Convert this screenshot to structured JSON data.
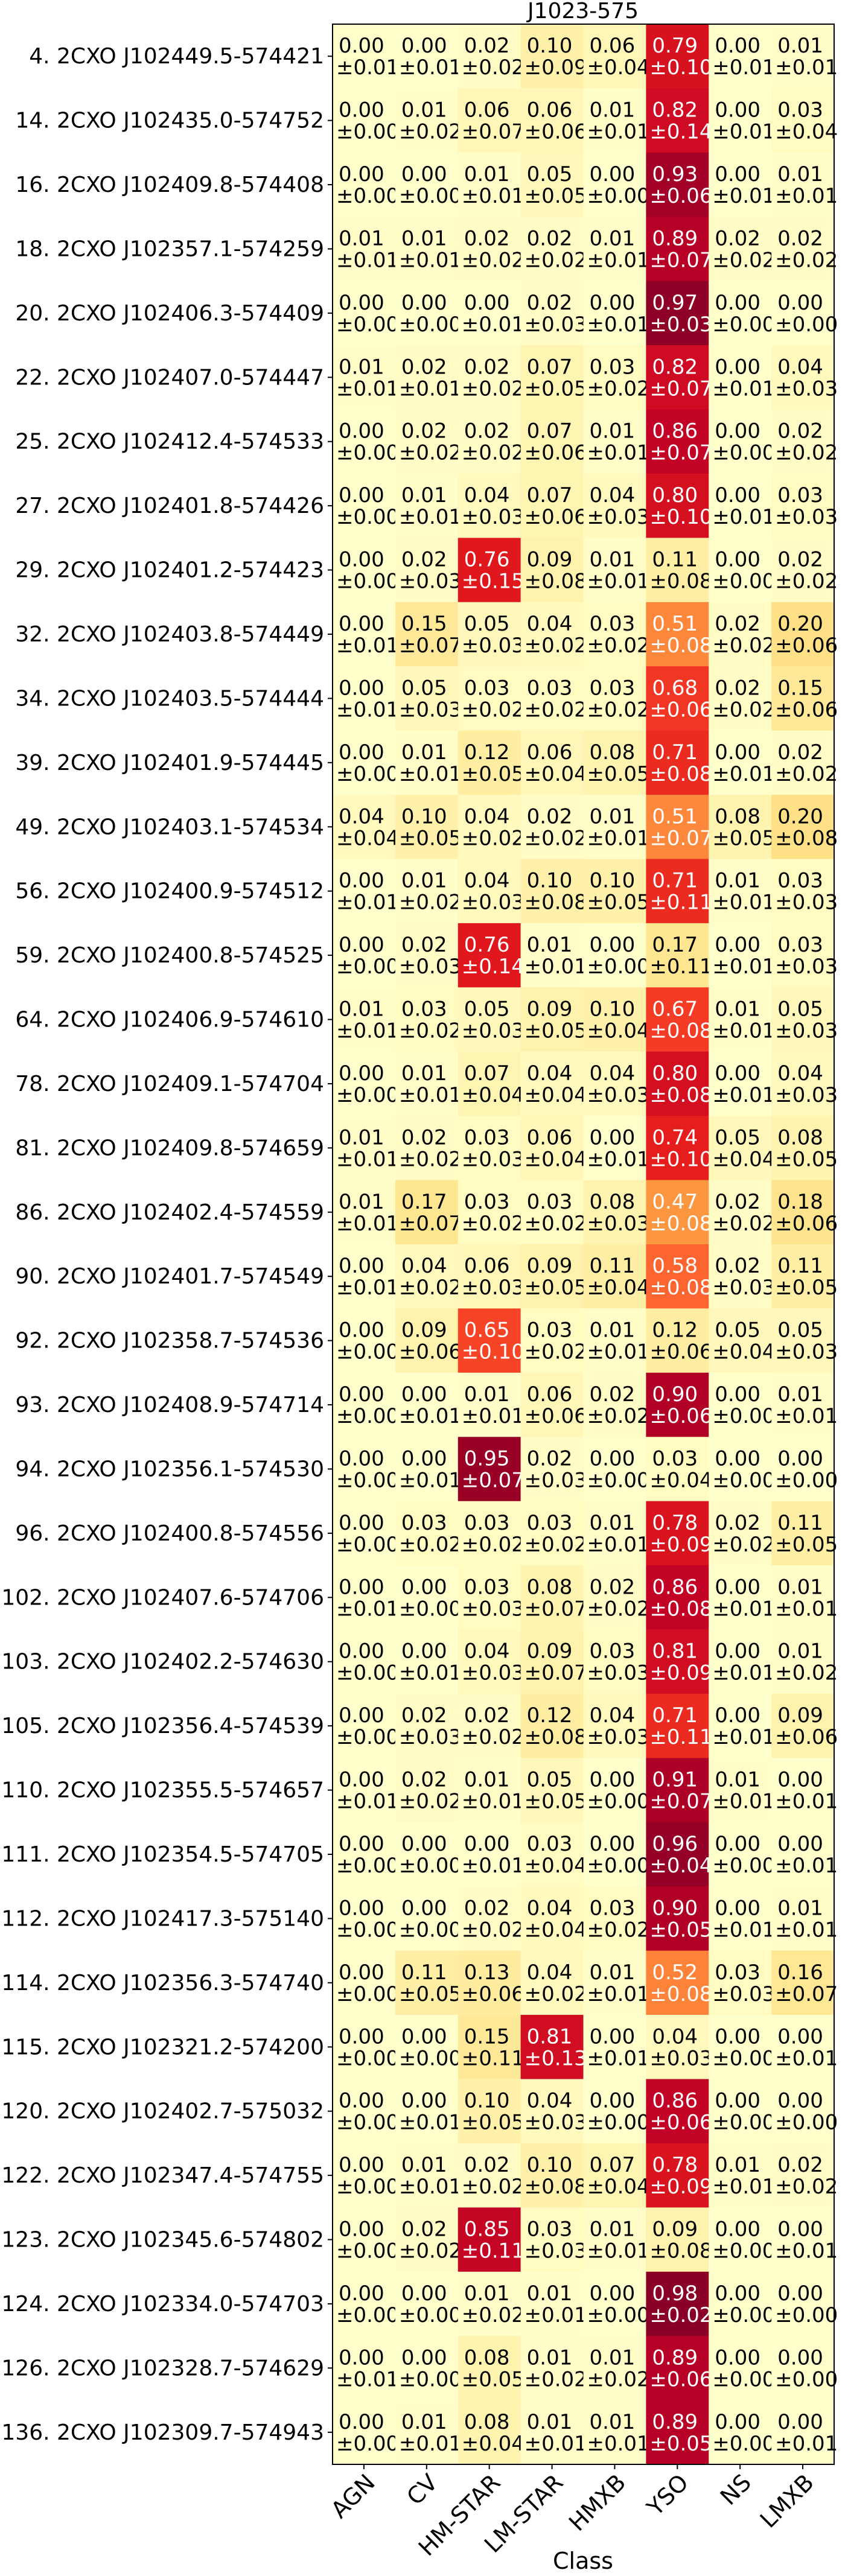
{
  "chart_data": {
    "type": "heatmap",
    "title": "J1023-575",
    "xlabel": "Class",
    "ylabel": "",
    "classes": [
      "AGN",
      "CV",
      "HM-STAR",
      "LM-STAR",
      "HMXB",
      "YSO",
      "NS",
      "LMXB"
    ],
    "colormap": "YlOrRd",
    "value_range": [
      0,
      1
    ],
    "cell_text_format": "{value}\n±{error}",
    "rows": [
      {
        "label": "4. 2CXO J102449.5-574421",
        "values": [
          "0.00",
          "0.00",
          "0.02",
          "0.10",
          "0.06",
          "0.79",
          "0.00",
          "0.01"
        ],
        "errors": [
          "0.01",
          "0.01",
          "0.02",
          "0.09",
          "0.04",
          "0.10",
          "0.01",
          "0.01"
        ]
      },
      {
        "label": "14. 2CXO J102435.0-574752",
        "values": [
          "0.00",
          "0.01",
          "0.06",
          "0.06",
          "0.01",
          "0.82",
          "0.00",
          "0.03"
        ],
        "errors": [
          "0.00",
          "0.02",
          "0.07",
          "0.06",
          "0.01",
          "0.14",
          "0.01",
          "0.04"
        ]
      },
      {
        "label": "16. 2CXO J102409.8-574408",
        "values": [
          "0.00",
          "0.00",
          "0.01",
          "0.05",
          "0.00",
          "0.93",
          "0.00",
          "0.01"
        ],
        "errors": [
          "0.00",
          "0.00",
          "0.01",
          "0.05",
          "0.00",
          "0.06",
          "0.01",
          "0.01"
        ]
      },
      {
        "label": "18. 2CXO J102357.1-574259",
        "values": [
          "0.01",
          "0.01",
          "0.02",
          "0.02",
          "0.01",
          "0.89",
          "0.02",
          "0.02"
        ],
        "errors": [
          "0.01",
          "0.01",
          "0.02",
          "0.02",
          "0.01",
          "0.07",
          "0.02",
          "0.02"
        ]
      },
      {
        "label": "20. 2CXO J102406.3-574409",
        "values": [
          "0.00",
          "0.00",
          "0.00",
          "0.02",
          "0.00",
          "0.97",
          "0.00",
          "0.00"
        ],
        "errors": [
          "0.00",
          "0.00",
          "0.01",
          "0.03",
          "0.01",
          "0.03",
          "0.00",
          "0.00"
        ]
      },
      {
        "label": "22. 2CXO J102407.0-574447",
        "values": [
          "0.01",
          "0.02",
          "0.02",
          "0.07",
          "0.03",
          "0.82",
          "0.00",
          "0.04"
        ],
        "errors": [
          "0.01",
          "0.01",
          "0.02",
          "0.05",
          "0.02",
          "0.07",
          "0.01",
          "0.03"
        ]
      },
      {
        "label": "25. 2CXO J102412.4-574533",
        "values": [
          "0.00",
          "0.02",
          "0.02",
          "0.07",
          "0.01",
          "0.86",
          "0.00",
          "0.02"
        ],
        "errors": [
          "0.00",
          "0.02",
          "0.02",
          "0.06",
          "0.01",
          "0.07",
          "0.00",
          "0.02"
        ]
      },
      {
        "label": "27. 2CXO J102401.8-574426",
        "values": [
          "0.00",
          "0.01",
          "0.04",
          "0.07",
          "0.04",
          "0.80",
          "0.00",
          "0.03"
        ],
        "errors": [
          "0.00",
          "0.01",
          "0.03",
          "0.06",
          "0.03",
          "0.10",
          "0.01",
          "0.03"
        ]
      },
      {
        "label": "29. 2CXO J102401.2-574423",
        "values": [
          "0.00",
          "0.02",
          "0.76",
          "0.09",
          "0.01",
          "0.11",
          "0.00",
          "0.02"
        ],
        "errors": [
          "0.00",
          "0.03",
          "0.15",
          "0.08",
          "0.01",
          "0.08",
          "0.00",
          "0.02"
        ]
      },
      {
        "label": "32. 2CXO J102403.8-574449",
        "values": [
          "0.00",
          "0.15",
          "0.05",
          "0.04",
          "0.03",
          "0.51",
          "0.02",
          "0.20"
        ],
        "errors": [
          "0.01",
          "0.07",
          "0.03",
          "0.02",
          "0.02",
          "0.08",
          "0.02",
          "0.06"
        ]
      },
      {
        "label": "34. 2CXO J102403.5-574444",
        "values": [
          "0.00",
          "0.05",
          "0.03",
          "0.03",
          "0.03",
          "0.68",
          "0.02",
          "0.15"
        ],
        "errors": [
          "0.01",
          "0.03",
          "0.02",
          "0.02",
          "0.02",
          "0.06",
          "0.02",
          "0.06"
        ]
      },
      {
        "label": "39. 2CXO J102401.9-574445",
        "values": [
          "0.00",
          "0.01",
          "0.12",
          "0.06",
          "0.08",
          "0.71",
          "0.00",
          "0.02"
        ],
        "errors": [
          "0.00",
          "0.01",
          "0.05",
          "0.04",
          "0.05",
          "0.08",
          "0.01",
          "0.02"
        ]
      },
      {
        "label": "49. 2CXO J102403.1-574534",
        "values": [
          "0.04",
          "0.10",
          "0.04",
          "0.02",
          "0.01",
          "0.51",
          "0.08",
          "0.20"
        ],
        "errors": [
          "0.04",
          "0.05",
          "0.02",
          "0.02",
          "0.01",
          "0.07",
          "0.05",
          "0.08"
        ]
      },
      {
        "label": "56. 2CXO J102400.9-574512",
        "values": [
          "0.00",
          "0.01",
          "0.04",
          "0.10",
          "0.10",
          "0.71",
          "0.01",
          "0.03"
        ],
        "errors": [
          "0.01",
          "0.02",
          "0.03",
          "0.08",
          "0.05",
          "0.11",
          "0.01",
          "0.03"
        ]
      },
      {
        "label": "59. 2CXO J102400.8-574525",
        "values": [
          "0.00",
          "0.02",
          "0.76",
          "0.01",
          "0.00",
          "0.17",
          "0.00",
          "0.03"
        ],
        "errors": [
          "0.00",
          "0.03",
          "0.14",
          "0.01",
          "0.00",
          "0.11",
          "0.01",
          "0.03"
        ]
      },
      {
        "label": "64. 2CXO J102406.9-574610",
        "values": [
          "0.01",
          "0.03",
          "0.05",
          "0.09",
          "0.10",
          "0.67",
          "0.01",
          "0.05"
        ],
        "errors": [
          "0.01",
          "0.02",
          "0.03",
          "0.05",
          "0.04",
          "0.08",
          "0.01",
          "0.03"
        ]
      },
      {
        "label": "78. 2CXO J102409.1-574704",
        "values": [
          "0.00",
          "0.01",
          "0.07",
          "0.04",
          "0.04",
          "0.80",
          "0.00",
          "0.04"
        ],
        "errors": [
          "0.00",
          "0.01",
          "0.04",
          "0.04",
          "0.03",
          "0.08",
          "0.01",
          "0.03"
        ]
      },
      {
        "label": "81. 2CXO J102409.8-574659",
        "values": [
          "0.01",
          "0.02",
          "0.03",
          "0.06",
          "0.00",
          "0.74",
          "0.05",
          "0.08"
        ],
        "errors": [
          "0.01",
          "0.02",
          "0.03",
          "0.04",
          "0.01",
          "0.10",
          "0.04",
          "0.05"
        ]
      },
      {
        "label": "86. 2CXO J102402.4-574559",
        "values": [
          "0.01",
          "0.17",
          "0.03",
          "0.03",
          "0.08",
          "0.47",
          "0.02",
          "0.18"
        ],
        "errors": [
          "0.01",
          "0.07",
          "0.02",
          "0.02",
          "0.03",
          "0.08",
          "0.02",
          "0.06"
        ]
      },
      {
        "label": "90. 2CXO J102401.7-574549",
        "values": [
          "0.00",
          "0.04",
          "0.06",
          "0.09",
          "0.11",
          "0.58",
          "0.02",
          "0.11"
        ],
        "errors": [
          "0.01",
          "0.02",
          "0.03",
          "0.05",
          "0.04",
          "0.08",
          "0.03",
          "0.05"
        ]
      },
      {
        "label": "92. 2CXO J102358.7-574536",
        "values": [
          "0.00",
          "0.09",
          "0.65",
          "0.03",
          "0.01",
          "0.12",
          "0.05",
          "0.05"
        ],
        "errors": [
          "0.00",
          "0.06",
          "0.10",
          "0.02",
          "0.01",
          "0.06",
          "0.04",
          "0.03"
        ]
      },
      {
        "label": "93. 2CXO J102408.9-574714",
        "values": [
          "0.00",
          "0.00",
          "0.01",
          "0.06",
          "0.02",
          "0.90",
          "0.00",
          "0.01"
        ],
        "errors": [
          "0.00",
          "0.01",
          "0.01",
          "0.06",
          "0.02",
          "0.06",
          "0.00",
          "0.01"
        ]
      },
      {
        "label": "94. 2CXO J102356.1-574530",
        "values": [
          "0.00",
          "0.00",
          "0.95",
          "0.02",
          "0.00",
          "0.03",
          "0.00",
          "0.00"
        ],
        "errors": [
          "0.00",
          "0.01",
          "0.07",
          "0.03",
          "0.00",
          "0.04",
          "0.00",
          "0.00"
        ]
      },
      {
        "label": "96. 2CXO J102400.8-574556",
        "values": [
          "0.00",
          "0.03",
          "0.03",
          "0.03",
          "0.01",
          "0.78",
          "0.02",
          "0.11"
        ],
        "errors": [
          "0.00",
          "0.02",
          "0.02",
          "0.02",
          "0.01",
          "0.09",
          "0.02",
          "0.05"
        ]
      },
      {
        "label": "102. 2CXO J102407.6-574706",
        "values": [
          "0.00",
          "0.00",
          "0.03",
          "0.08",
          "0.02",
          "0.86",
          "0.00",
          "0.01"
        ],
        "errors": [
          "0.01",
          "0.00",
          "0.03",
          "0.07",
          "0.02",
          "0.08",
          "0.01",
          "0.01"
        ]
      },
      {
        "label": "103. 2CXO J102402.2-574630",
        "values": [
          "0.00",
          "0.00",
          "0.04",
          "0.09",
          "0.03",
          "0.81",
          "0.00",
          "0.01"
        ],
        "errors": [
          "0.00",
          "0.01",
          "0.03",
          "0.07",
          "0.03",
          "0.09",
          "0.01",
          "0.02"
        ]
      },
      {
        "label": "105. 2CXO J102356.4-574539",
        "values": [
          "0.00",
          "0.02",
          "0.02",
          "0.12",
          "0.04",
          "0.71",
          "0.00",
          "0.09"
        ],
        "errors": [
          "0.00",
          "0.03",
          "0.02",
          "0.08",
          "0.03",
          "0.11",
          "0.01",
          "0.06"
        ]
      },
      {
        "label": "110. 2CXO J102355.5-574657",
        "values": [
          "0.00",
          "0.02",
          "0.01",
          "0.05",
          "0.00",
          "0.91",
          "0.01",
          "0.00"
        ],
        "errors": [
          "0.01",
          "0.02",
          "0.01",
          "0.05",
          "0.00",
          "0.07",
          "0.01",
          "0.01"
        ]
      },
      {
        "label": "111. 2CXO J102354.5-574705",
        "values": [
          "0.00",
          "0.00",
          "0.00",
          "0.03",
          "0.00",
          "0.96",
          "0.00",
          "0.00"
        ],
        "errors": [
          "0.00",
          "0.00",
          "0.01",
          "0.04",
          "0.00",
          "0.04",
          "0.00",
          "0.01"
        ]
      },
      {
        "label": "112. 2CXO J102417.3-575140",
        "values": [
          "0.00",
          "0.00",
          "0.02",
          "0.04",
          "0.03",
          "0.90",
          "0.00",
          "0.01"
        ],
        "errors": [
          "0.00",
          "0.00",
          "0.02",
          "0.04",
          "0.02",
          "0.05",
          "0.01",
          "0.01"
        ]
      },
      {
        "label": "114. 2CXO J102356.3-574740",
        "values": [
          "0.00",
          "0.11",
          "0.13",
          "0.04",
          "0.01",
          "0.52",
          "0.03",
          "0.16"
        ],
        "errors": [
          "0.00",
          "0.05",
          "0.06",
          "0.02",
          "0.01",
          "0.08",
          "0.03",
          "0.07"
        ]
      },
      {
        "label": "115. 2CXO J102321.2-574200",
        "values": [
          "0.00",
          "0.00",
          "0.15",
          "0.81",
          "0.00",
          "0.04",
          "0.00",
          "0.00"
        ],
        "errors": [
          "0.00",
          "0.00",
          "0.11",
          "0.13",
          "0.01",
          "0.03",
          "0.00",
          "0.01"
        ]
      },
      {
        "label": "120. 2CXO J102402.7-575032",
        "values": [
          "0.00",
          "0.00",
          "0.10",
          "0.04",
          "0.00",
          "0.86",
          "0.00",
          "0.00"
        ],
        "errors": [
          "0.00",
          "0.01",
          "0.05",
          "0.03",
          "0.00",
          "0.06",
          "0.00",
          "0.00"
        ]
      },
      {
        "label": "122. 2CXO J102347.4-574755",
        "values": [
          "0.00",
          "0.01",
          "0.02",
          "0.10",
          "0.07",
          "0.78",
          "0.01",
          "0.02"
        ],
        "errors": [
          "0.00",
          "0.01",
          "0.02",
          "0.08",
          "0.04",
          "0.09",
          "0.01",
          "0.02"
        ]
      },
      {
        "label": "123. 2CXO J102345.6-574802",
        "values": [
          "0.00",
          "0.02",
          "0.85",
          "0.03",
          "0.01",
          "0.09",
          "0.00",
          "0.00"
        ],
        "errors": [
          "0.00",
          "0.02",
          "0.11",
          "0.03",
          "0.01",
          "0.08",
          "0.00",
          "0.01"
        ]
      },
      {
        "label": "124. 2CXO J102334.0-574703",
        "values": [
          "0.00",
          "0.00",
          "0.01",
          "0.01",
          "0.00",
          "0.98",
          "0.00",
          "0.00"
        ],
        "errors": [
          "0.00",
          "0.00",
          "0.02",
          "0.01",
          "0.00",
          "0.02",
          "0.00",
          "0.00"
        ]
      },
      {
        "label": "126. 2CXO J102328.7-574629",
        "values": [
          "0.00",
          "0.00",
          "0.08",
          "0.01",
          "0.01",
          "0.89",
          "0.00",
          "0.00"
        ],
        "errors": [
          "0.01",
          "0.00",
          "0.05",
          "0.02",
          "0.02",
          "0.06",
          "0.00",
          "0.00"
        ]
      },
      {
        "label": "136. 2CXO J102309.7-574943",
        "values": [
          "0.00",
          "0.01",
          "0.08",
          "0.01",
          "0.01",
          "0.89",
          "0.00",
          "0.00"
        ],
        "errors": [
          "0.00",
          "0.01",
          "0.04",
          "0.01",
          "0.01",
          "0.05",
          "0.00",
          "0.01"
        ]
      }
    ]
  }
}
